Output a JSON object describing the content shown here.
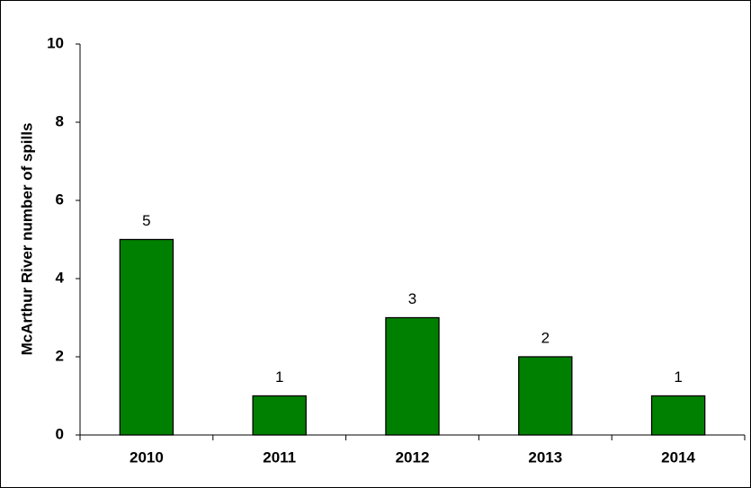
{
  "chart_data": {
    "type": "bar",
    "y_label": "McArthur River number of spills",
    "categories": [
      "2010",
      "2011",
      "2012",
      "2013",
      "2014"
    ],
    "values": [
      5,
      1,
      3,
      2,
      1
    ],
    "color": "#008000",
    "ylim": [
      0,
      10
    ],
    "yticks": [
      0,
      2,
      4,
      6,
      8,
      10
    ],
    "grid": false,
    "data_labels": true
  }
}
